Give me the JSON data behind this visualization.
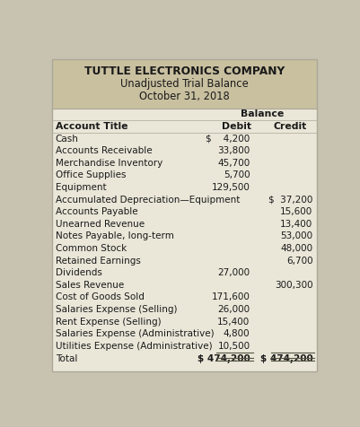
{
  "title_line1": "TUTTLE ELECTRONICS COMPANY",
  "title_line2": "Unadjusted Trial Balance",
  "title_line3": "October 31, 2018",
  "header_bg": "#c9c0a0",
  "table_bg": "#eae6d8",
  "fig_bg": "#c8c3b0",
  "balance_header": "Balance",
  "col_headers": [
    "Account Title",
    "Debit",
    "Credit"
  ],
  "rows": [
    {
      "account": "Cash",
      "debit": "$    4,200",
      "credit": ""
    },
    {
      "account": "Accounts Receivable",
      "debit": "33,800",
      "credit": ""
    },
    {
      "account": "Merchandise Inventory",
      "debit": "45,700",
      "credit": ""
    },
    {
      "account": "Office Supplies",
      "debit": "5,700",
      "credit": ""
    },
    {
      "account": "Equipment",
      "debit": "129,500",
      "credit": ""
    },
    {
      "account": "Accumulated Depreciation—Equipment",
      "debit": "",
      "credit": "$  37,200"
    },
    {
      "account": "Accounts Payable",
      "debit": "",
      "credit": "15,600"
    },
    {
      "account": "Unearned Revenue",
      "debit": "",
      "credit": "13,400"
    },
    {
      "account": "Notes Payable, long-term",
      "debit": "",
      "credit": "53,000"
    },
    {
      "account": "Common Stock",
      "debit": "",
      "credit": "48,000"
    },
    {
      "account": "Retained Earnings",
      "debit": "",
      "credit": "6,700"
    },
    {
      "account": "Dividends",
      "debit": "27,000",
      "credit": ""
    },
    {
      "account": "Sales Revenue",
      "debit": "",
      "credit": "300,300"
    },
    {
      "account": "Cost of Goods Sold",
      "debit": "171,600",
      "credit": ""
    },
    {
      "account": "Salaries Expense (Selling)",
      "debit": "26,000",
      "credit": ""
    },
    {
      "account": "Rent Expense (Selling)",
      "debit": "15,400",
      "credit": ""
    },
    {
      "account": "Salaries Expense (Administrative)",
      "debit": "4,800",
      "credit": ""
    },
    {
      "account": "Utilities Expense (Administrative)",
      "debit": "10,500",
      "credit": ""
    }
  ],
  "total_row": {
    "account": "Total",
    "debit": "$ 474,200",
    "credit": "$ 474,200"
  },
  "title_fontsize": 8.8,
  "header_fontsize": 7.8,
  "body_fontsize": 7.5
}
